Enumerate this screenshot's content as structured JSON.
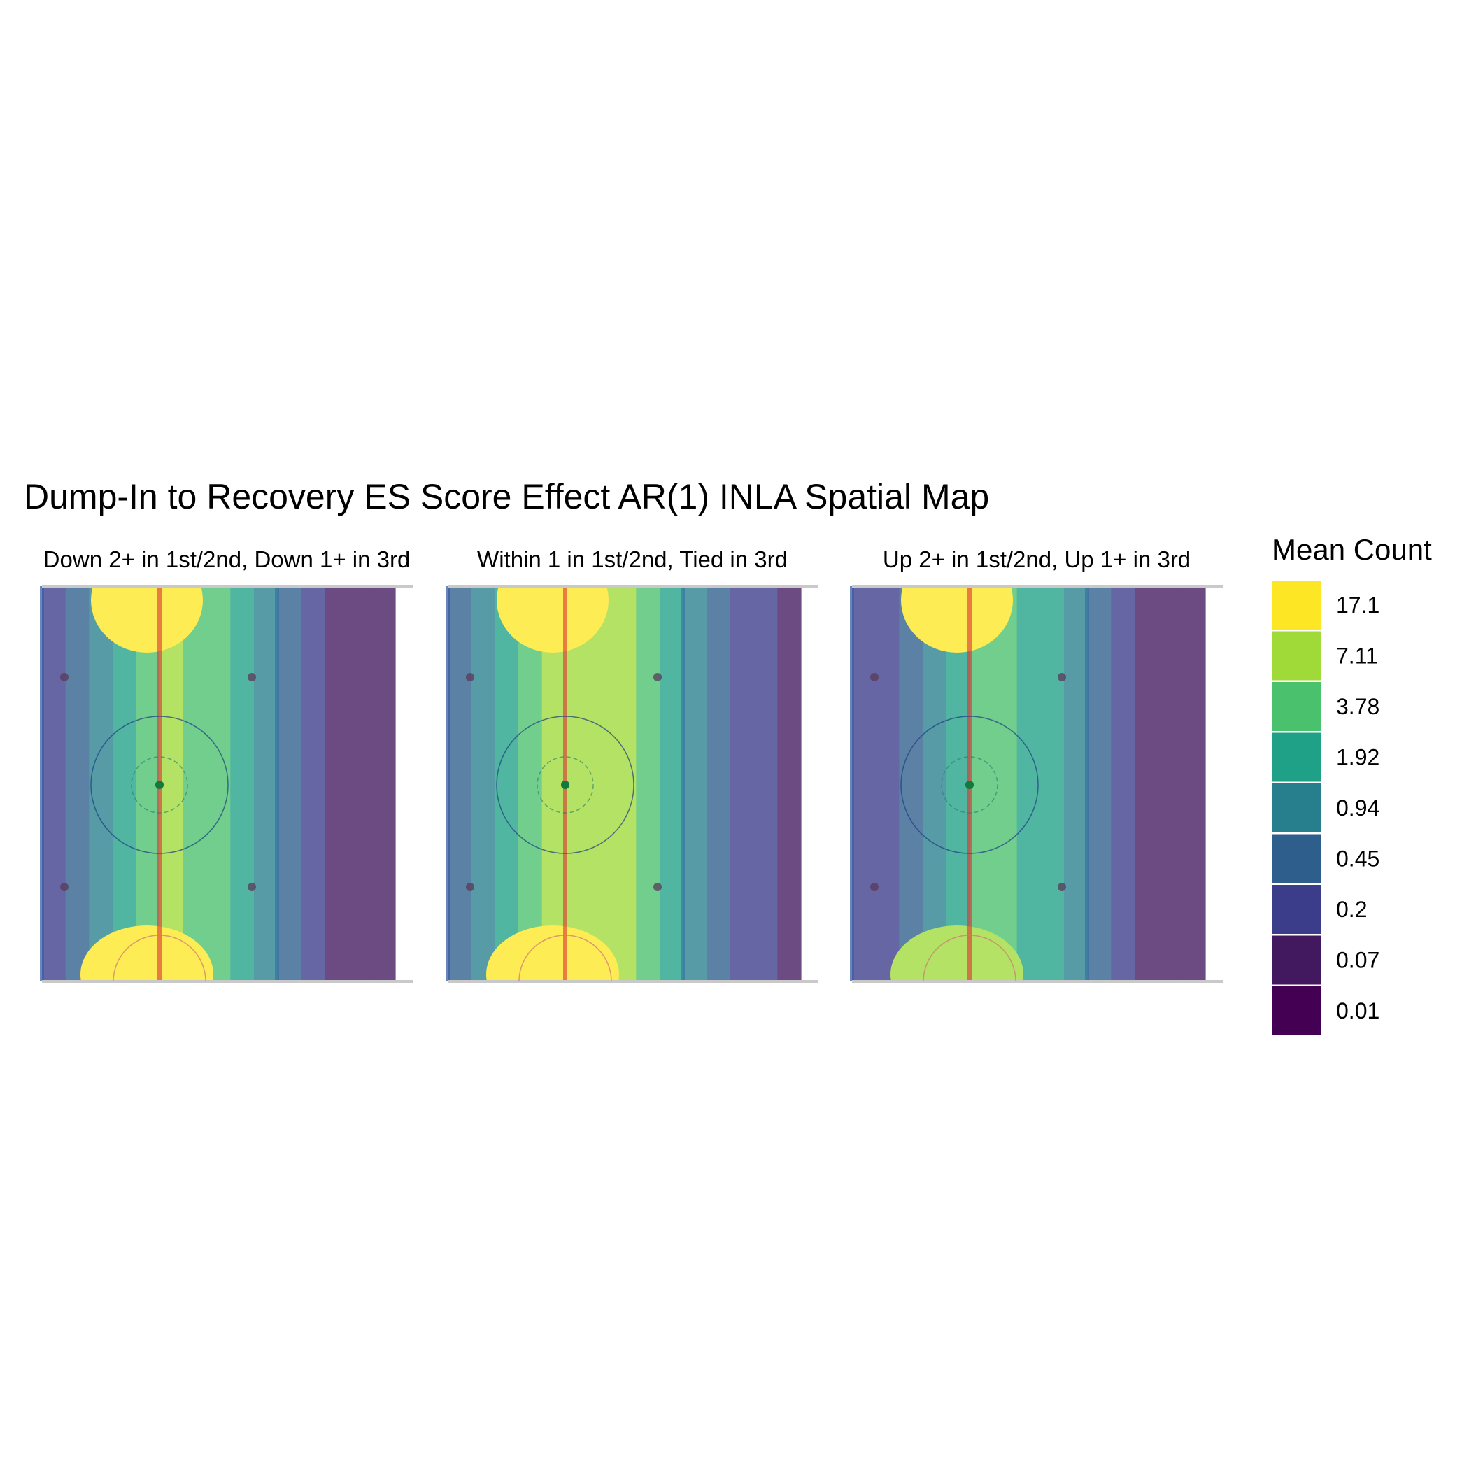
{
  "title": "Dump-In to Recovery ES Score Effect AR(1) INLA Spatial Map",
  "legend": {
    "title": "Mean Count",
    "breaks": [
      {
        "label": "17.1",
        "color": "#fde725"
      },
      {
        "label": "7.11",
        "color": "#a0da39"
      },
      {
        "label": "3.78",
        "color": "#4ac16d"
      },
      {
        "label": "1.92",
        "color": "#1fa187"
      },
      {
        "label": "0.94",
        "color": "#277f8e"
      },
      {
        "label": "0.45",
        "color": "#2e5e8c"
      },
      {
        "label": "0.2",
        "color": "#3b3c8a"
      },
      {
        "label": "0.07",
        "color": "#42195e"
      },
      {
        "label": "0.01",
        "color": "#440154"
      }
    ]
  },
  "chart_data": {
    "type": "heatmap",
    "title": "Dump-In to Recovery ES Score Effect AR(1) INLA Spatial Map",
    "legend_title": "Mean Count",
    "legend_position": "right",
    "grid": false,
    "scale_breaks": [
      17.1,
      7.11,
      3.78,
      1.92,
      0.94,
      0.45,
      0.2,
      0.07,
      0.01
    ],
    "panels": [
      {
        "label": "Down 2+ in 1st/2nd, Down 1+ in 3rd",
        "columns": [
          0.2,
          0.45,
          0.94,
          1.92,
          3.78,
          7.11,
          3.78,
          3.78,
          1.92,
          0.94,
          0.45,
          0.2,
          0.07,
          0.07,
          0.07
        ],
        "top_hotspot": 17.1,
        "bottom_hotspot": 17.1
      },
      {
        "label": "Within 1 in 1st/2nd, Tied in 3rd",
        "columns": [
          0.45,
          0.94,
          1.92,
          3.78,
          7.11,
          7.11,
          7.11,
          7.11,
          3.78,
          1.92,
          0.94,
          0.45,
          0.2,
          0.2,
          0.07
        ],
        "top_hotspot": 17.1,
        "bottom_hotspot": 17.1
      },
      {
        "label": "Up 2+ in 1st/2nd, Up 1+ in 3rd",
        "columns": [
          0.2,
          0.2,
          0.45,
          0.94,
          1.92,
          3.78,
          3.78,
          1.92,
          1.92,
          0.94,
          0.45,
          0.2,
          0.07,
          0.07,
          0.07
        ],
        "top_hotspot": 17.1,
        "bottom_hotspot": 7.11
      }
    ]
  }
}
